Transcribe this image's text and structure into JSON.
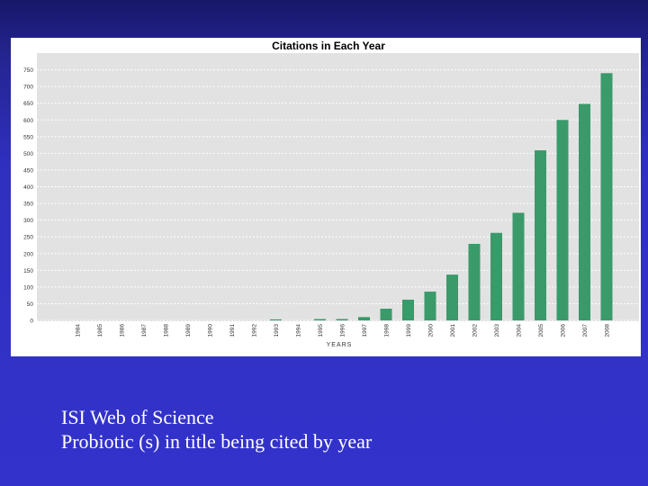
{
  "chart_data": {
    "type": "bar",
    "title": "Citations in Each Year",
    "xlabel": "YEARS",
    "ylabel": "",
    "ylim": [
      0,
      800
    ],
    "yticks": [
      0,
      50,
      100,
      150,
      200,
      250,
      300,
      350,
      400,
      450,
      500,
      550,
      600,
      650,
      700,
      750
    ],
    "grid": true,
    "legend": "none",
    "bar_color": "#3a9a6a",
    "categories": [
      "1984",
      "1985",
      "1986",
      "1987",
      "1988",
      "1989",
      "1990",
      "1991",
      "1992",
      "1993",
      "1994",
      "1995",
      "1996",
      "1997",
      "1998",
      "1999",
      "2000",
      "2001",
      "2002",
      "2003",
      "2004",
      "2005",
      "2006",
      "2007",
      "2008"
    ],
    "values": [
      0,
      0,
      0,
      0,
      0,
      0,
      0,
      0,
      0,
      3,
      0,
      4,
      4,
      10,
      35,
      62,
      86,
      137,
      229,
      262,
      322,
      509,
      600,
      648,
      740
    ]
  },
  "caption": {
    "line1": "ISI Web of Science",
    "line2": "Probiotic (s) in title being cited by year"
  }
}
